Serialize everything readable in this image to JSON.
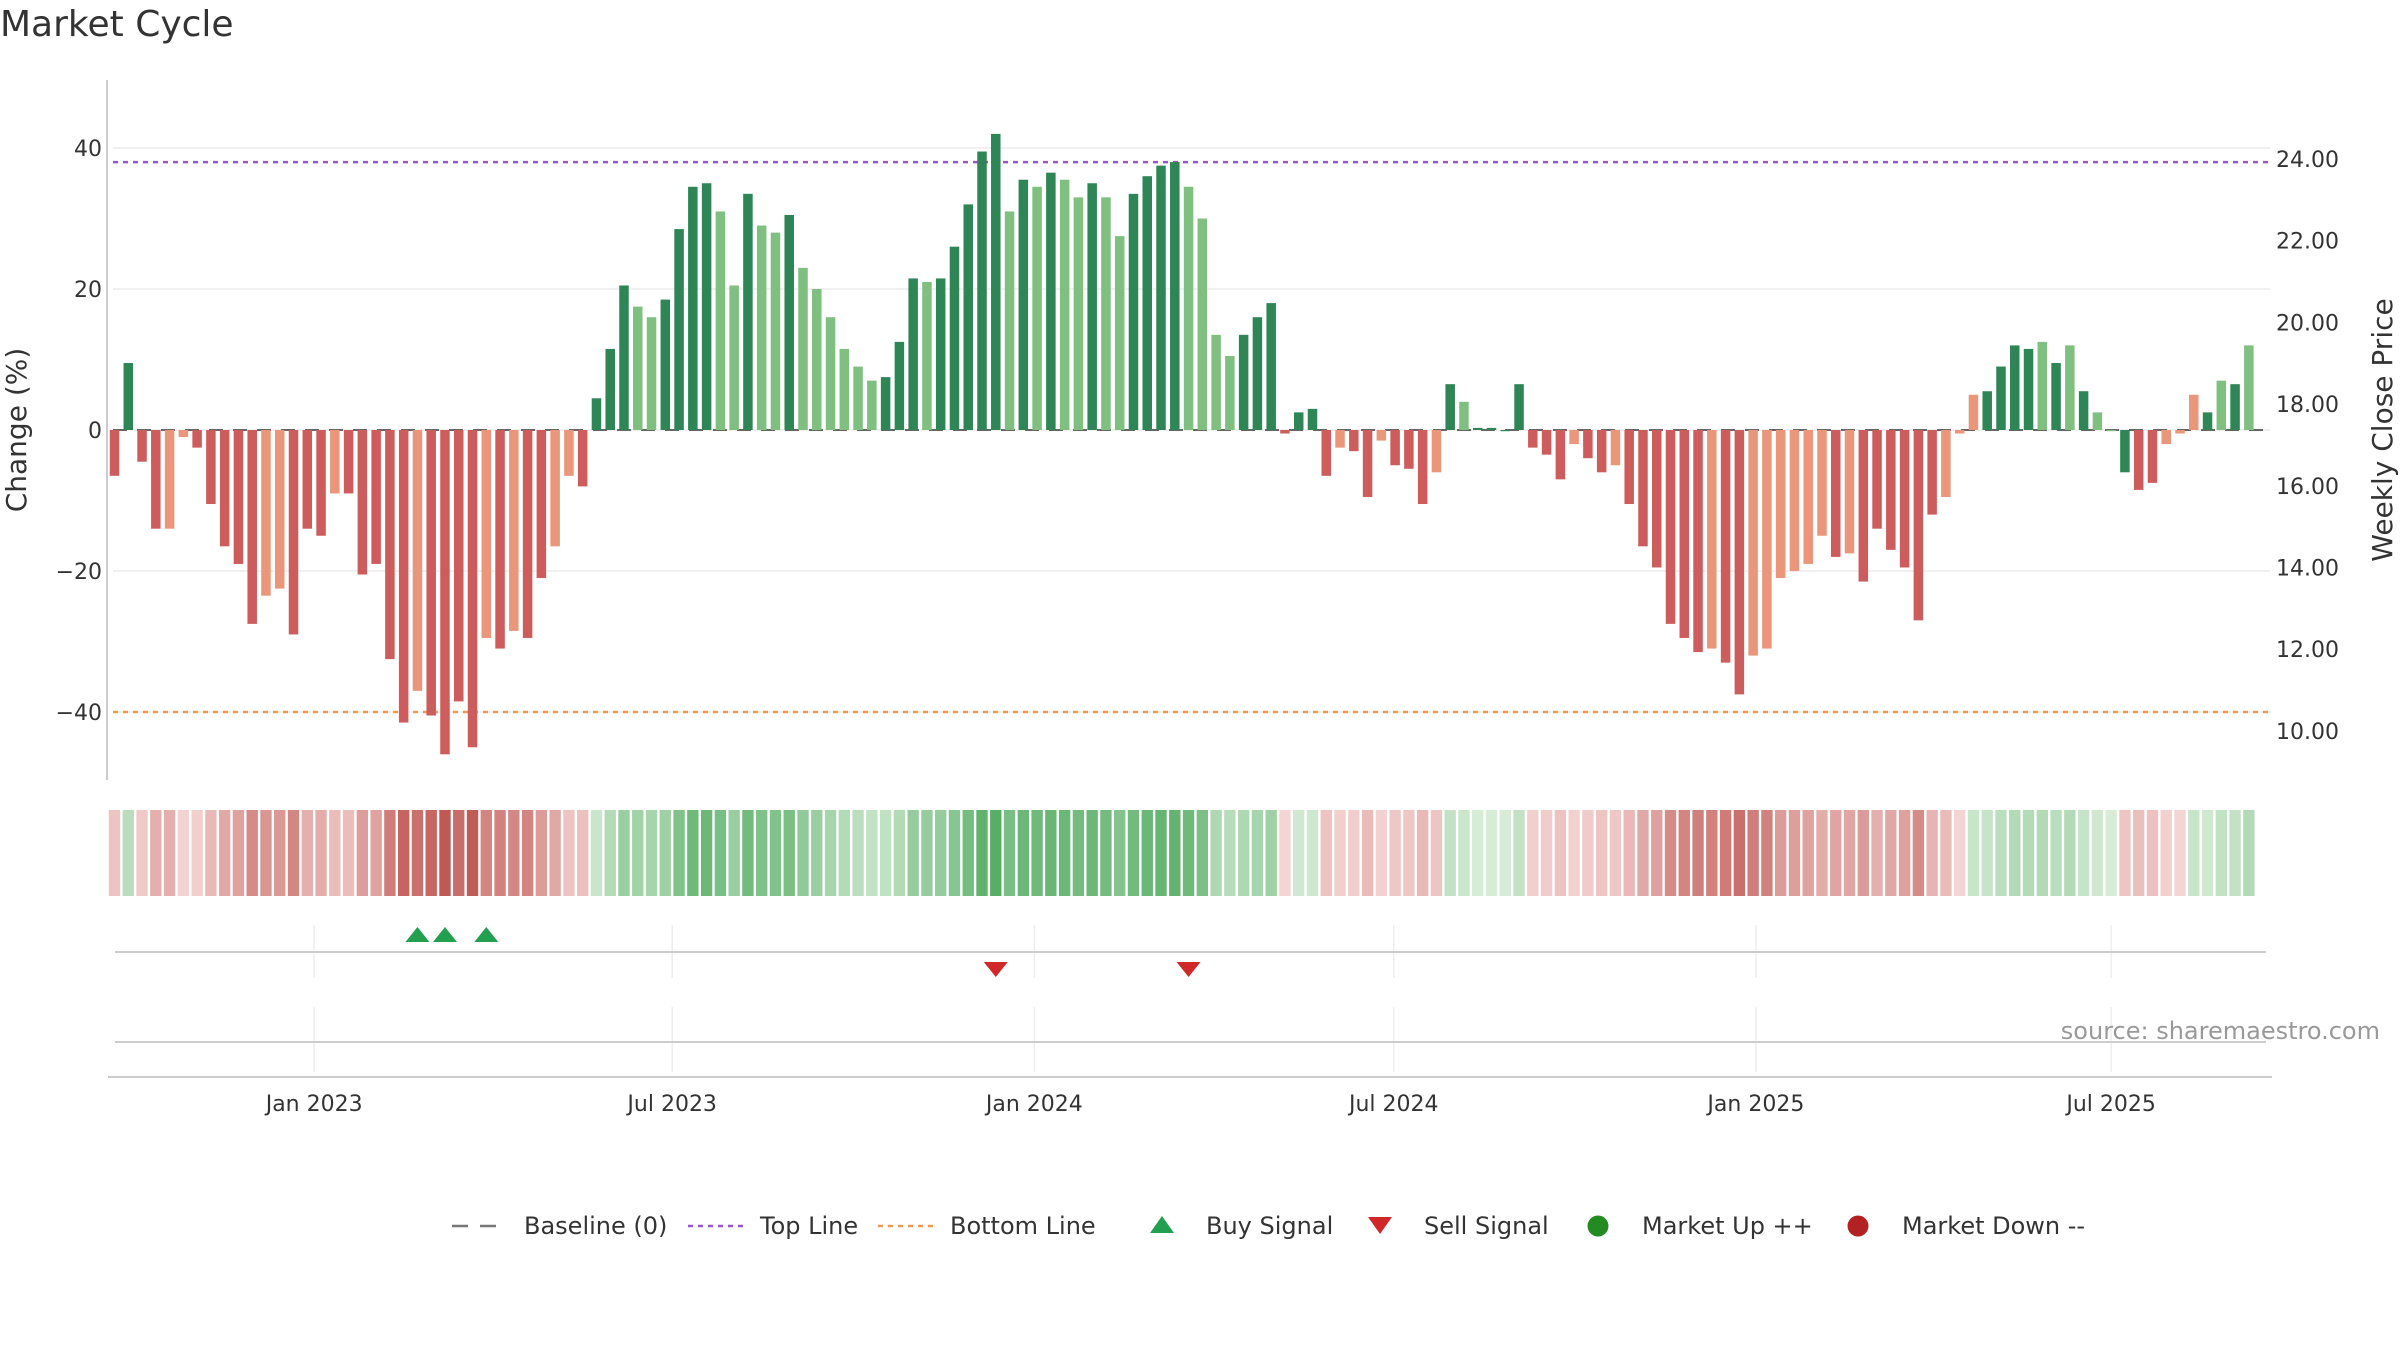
{
  "title": "Market Cycle",
  "source": "source: sharemaestro.com",
  "colors": {
    "strong_up": "#2e8555",
    "weak_up": "#7fbf7f",
    "strong_down": "#cd5c5c",
    "weak_down": "#e9967a",
    "top_line": "#9955cc",
    "bottom_line": "#ee9955",
    "buy": "#22a050",
    "sell": "#d02828",
    "market_up": "#228b22",
    "market_down": "#b22222",
    "baseline": "#777777"
  },
  "chart_data": {
    "type": "bar",
    "title": "Market Cycle",
    "ylabel": "Change (%)",
    "y2label": "Weekly Close Price",
    "ylim": [
      -49,
      50
    ],
    "y2lim": [
      9.1,
      25.2
    ],
    "yticks": [
      {
        "v": 40,
        "label": "40"
      },
      {
        "v": 20,
        "label": "20"
      },
      {
        "v": 0,
        "label": "0"
      },
      {
        "v": -20,
        "label": "−20"
      },
      {
        "v": -40,
        "label": "−40"
      }
    ],
    "y2ticks": [
      "24.00",
      "22.00",
      "20.00",
      "18.00",
      "16.00",
      "14.00",
      "12.00",
      "10.00"
    ],
    "xticks": [
      {
        "week": 14.5,
        "label": "Jan 2023"
      },
      {
        "week": 40.5,
        "label": "Jul 2023"
      },
      {
        "week": 66.8,
        "label": "Jan 2024"
      },
      {
        "week": 92.9,
        "label": "Jul 2024"
      },
      {
        "week": 119.2,
        "label": "Jan 2025"
      },
      {
        "week": 145.0,
        "label": "Jul 2025"
      }
    ],
    "top_line": 38,
    "bottom_line": -40,
    "values": [
      -6.5,
      9.5,
      -4.5,
      -14,
      -14,
      -1,
      -2.5,
      -10.5,
      -16.5,
      -19,
      -27.5,
      -23.5,
      -22.5,
      -29,
      -14,
      -15,
      -9,
      -9,
      -20.5,
      -19,
      -32.5,
      -41.5,
      -37,
      -40.5,
      -46,
      -38.5,
      -45,
      -29.5,
      -31,
      -28.5,
      -29.5,
      -21,
      -16.5,
      -6.5,
      -8,
      4.5,
      11.5,
      20.5,
      17.5,
      16,
      18.5,
      28.5,
      34.5,
      35,
      31,
      20.5,
      33.5,
      29,
      28,
      30.5,
      23,
      20,
      16,
      11.5,
      9,
      7,
      7.5,
      12.5,
      21.5,
      21,
      21.5,
      26,
      32,
      39.5,
      42,
      31,
      35.5,
      34.5,
      36.5,
      35.5,
      33,
      35,
      33,
      27.5,
      33.5,
      36,
      37.5,
      38,
      34.5,
      30,
      13.5,
      10.5,
      13.5,
      16,
      18,
      -0.5,
      2.5,
      3,
      -6.5,
      -2.5,
      -3,
      -9.5,
      -1.5,
      -5,
      -5.5,
      -10.5,
      -6,
      6.5,
      4,
      0.3,
      0.3,
      0,
      6.5,
      -2.5,
      -3.5,
      -7,
      -2,
      -4,
      -6,
      -5,
      -10.5,
      -16.5,
      -19.5,
      -27.5,
      -29.5,
      -31.5,
      -31,
      -33,
      -37.5,
      -32,
      -31,
      -21,
      -20,
      -19,
      -15,
      -18,
      -17.5,
      -21.5,
      -14,
      -17,
      -19.5,
      -27,
      -12,
      -9.5,
      -0.5,
      5,
      5.5,
      9,
      12,
      11.5,
      12.5,
      9.5,
      12,
      5.5,
      2.5,
      0,
      -6,
      -8.5,
      -7.5,
      -2,
      -0.5,
      5,
      2.5,
      7,
      6.5,
      12
    ],
    "colors": [
      "sd",
      "su",
      "sd",
      "sd",
      "wd",
      "wd",
      "sd",
      "sd",
      "sd",
      "sd",
      "sd",
      "wd",
      "wd",
      "sd",
      "sd",
      "sd",
      "wd",
      "sd",
      "sd",
      "sd",
      "sd",
      "sd",
      "wd",
      "sd",
      "sd",
      "sd",
      "sd",
      "wd",
      "sd",
      "wd",
      "sd",
      "sd",
      "wd",
      "wd",
      "sd",
      "su",
      "su",
      "su",
      "wu",
      "wu",
      "su",
      "su",
      "su",
      "su",
      "wu",
      "wu",
      "su",
      "wu",
      "wu",
      "su",
      "wu",
      "wu",
      "wu",
      "wu",
      "wu",
      "wu",
      "su",
      "su",
      "su",
      "wu",
      "su",
      "su",
      "su",
      "su",
      "su",
      "wu",
      "su",
      "wu",
      "su",
      "wu",
      "wu",
      "su",
      "wu",
      "wu",
      "su",
      "su",
      "su",
      "su",
      "wu",
      "wu",
      "wu",
      "wu",
      "su",
      "su",
      "su",
      "sd",
      "su",
      "su",
      "sd",
      "wd",
      "sd",
      "sd",
      "wd",
      "sd",
      "sd",
      "sd",
      "wd",
      "su",
      "wu",
      "su",
      "su",
      "su",
      "su",
      "sd",
      "sd",
      "sd",
      "wd",
      "sd",
      "sd",
      "wd",
      "sd",
      "sd",
      "sd",
      "sd",
      "sd",
      "sd",
      "wd",
      "sd",
      "sd",
      "wd",
      "wd",
      "wd",
      "wd",
      "wd",
      "wd",
      "sd",
      "wd",
      "sd",
      "sd",
      "sd",
      "sd",
      "sd",
      "sd",
      "wd",
      "wd",
      "wd",
      "su",
      "su",
      "su",
      "su",
      "wu",
      "su",
      "wu",
      "su",
      "wu",
      "wu",
      "su",
      "sd",
      "sd",
      "wd",
      "wd",
      "wd",
      "su",
      "wu",
      "su",
      "wu",
      "su"
    ],
    "buy_signals": [
      22,
      24,
      27
    ],
    "sell_signals": [
      64,
      78
    ],
    "legend": [
      {
        "kind": "dash",
        "label": "Baseline (0)"
      },
      {
        "kind": "dot-purple",
        "label": "Top Line"
      },
      {
        "kind": "dot-orange",
        "label": "Bottom Line"
      },
      {
        "kind": "tri-up",
        "label": "Buy Signal"
      },
      {
        "kind": "tri-down",
        "label": "Sell Signal"
      },
      {
        "kind": "circle-green",
        "label": "Market Up ++"
      },
      {
        "kind": "circle-red",
        "label": "Market Down --"
      }
    ]
  }
}
